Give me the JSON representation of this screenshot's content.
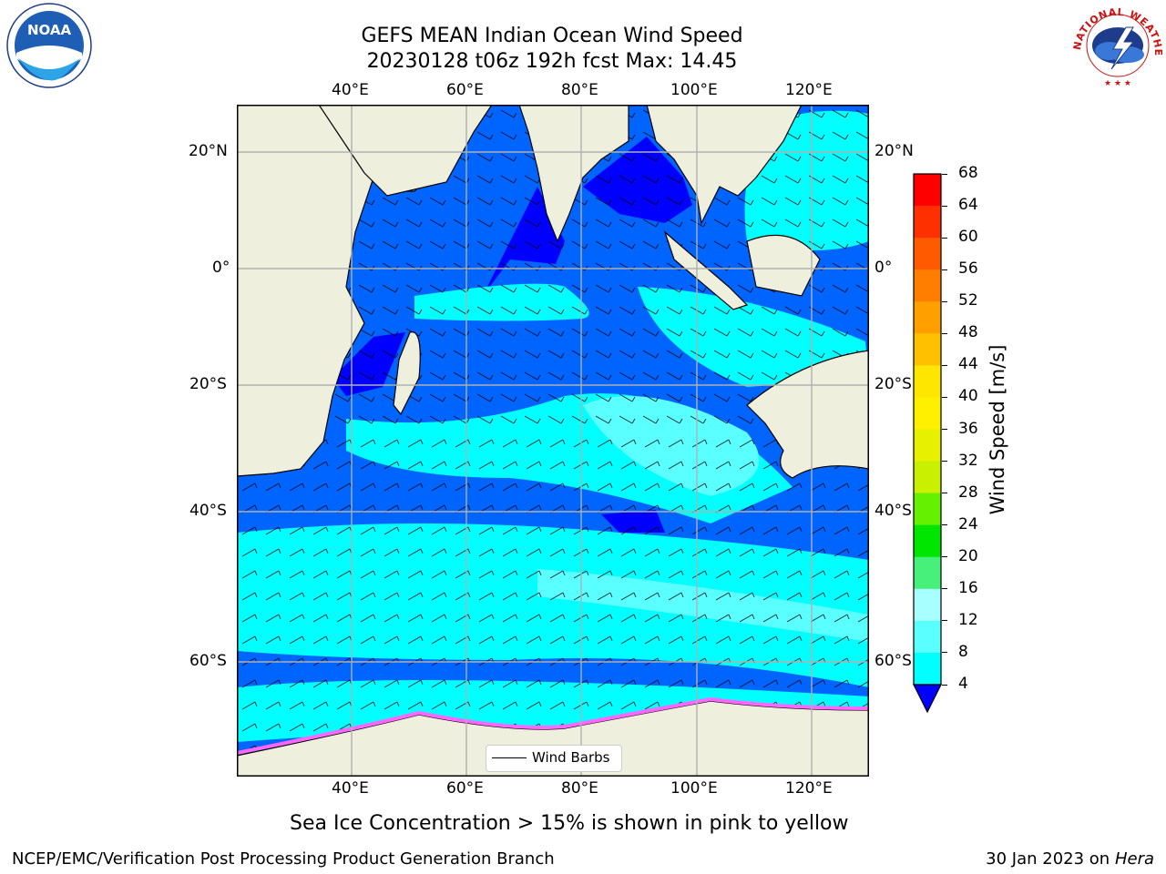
{
  "header": {
    "title_line1": "GEFS MEAN Indian Ocean Wind Speed",
    "title_line2": "20230128 t06z 192h fcst   Max: 14.45"
  },
  "logos": {
    "noaa": {
      "text": "NOAA"
    },
    "nws": {
      "text": "NATIONAL WEATHER SERVICE"
    }
  },
  "map": {
    "lon_ticks_top": [
      "40°E",
      "60°E",
      "80°E",
      "100°E",
      "120°E"
    ],
    "lon_ticks_bottom": [
      "40°E",
      "60°E",
      "80°E",
      "100°E",
      "120°E"
    ],
    "lat_ticks_left": [
      "20°N",
      "0°",
      "20°S",
      "40°S",
      "60°S"
    ],
    "lat_ticks_right": [
      "20°N",
      "0°",
      "20°S",
      "40°S",
      "60°S"
    ],
    "lon_range": [
      20,
      130
    ],
    "lat_range": [
      -75,
      27
    ],
    "grid": true,
    "colors": {
      "land": "#efefde",
      "sea_ice": "#ff66ff"
    },
    "legend": {
      "label": "Wind Barbs",
      "placement": "lower-center"
    }
  },
  "colorbar": {
    "title": "Wind Speed [m/s]",
    "labels": [
      "68",
      "64",
      "60",
      "56",
      "52",
      "48",
      "44",
      "40",
      "36",
      "32",
      "28",
      "24",
      "20",
      "16",
      "12",
      "8",
      "4"
    ],
    "colors": [
      "#ff0000",
      "#ff3000",
      "#ff5a00",
      "#ff7e00",
      "#ffa000",
      "#ffc000",
      "#ffe600",
      "#fff000",
      "#e6f000",
      "#c8f000",
      "#64f000",
      "#00e600",
      "#46f07a",
      "#a8ffff",
      "#5affff",
      "#00ffff",
      "#0064ff",
      "#0000ff"
    ]
  },
  "footer": {
    "caption": "Sea Ice Concentration > 15% is shown in pink to yellow",
    "credit": "NCEP/EMC/Verification Post Processing Product Generation Branch",
    "date_prefix": "30 Jan 2023 on ",
    "date_machine": "Hera"
  }
}
